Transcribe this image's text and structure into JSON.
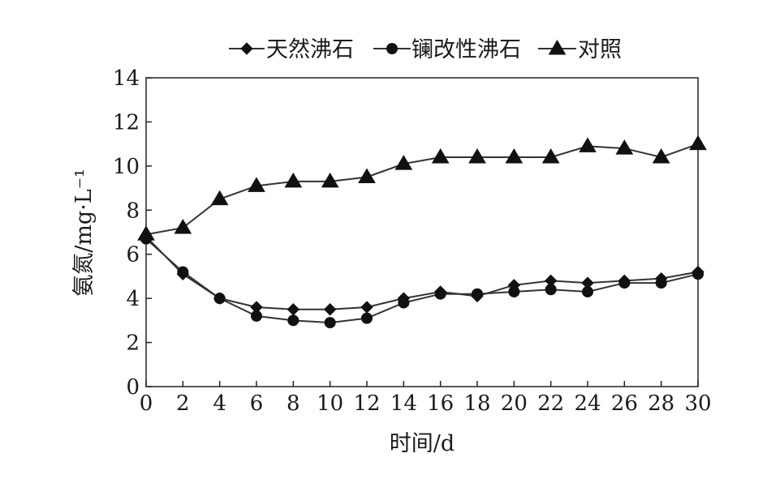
{
  "chart_data": {
    "type": "line",
    "xlabel": "时间/d",
    "ylabel": "氨氮/mg·L⁻¹",
    "xlim": [
      0,
      30
    ],
    "ylim": [
      0,
      14
    ],
    "xticks": [
      0,
      2,
      4,
      6,
      8,
      10,
      12,
      14,
      16,
      18,
      20,
      22,
      24,
      26,
      28,
      30
    ],
    "yticks": [
      0,
      2,
      4,
      6,
      8,
      10,
      12,
      14
    ],
    "x": [
      0,
      2,
      4,
      6,
      8,
      10,
      12,
      14,
      16,
      18,
      20,
      22,
      24,
      26,
      28,
      30
    ],
    "legend_position": "top",
    "grid": false,
    "series": [
      {
        "name": "天然沸石",
        "marker": "diamond",
        "values": [
          6.8,
          5.1,
          4.0,
          3.6,
          3.5,
          3.5,
          3.6,
          4.0,
          4.3,
          4.1,
          4.6,
          4.8,
          4.7,
          4.8,
          4.9,
          5.2
        ]
      },
      {
        "name": "镧改性沸石",
        "marker": "circle",
        "values": [
          6.7,
          5.2,
          4.0,
          3.2,
          3.0,
          2.9,
          3.1,
          3.8,
          4.2,
          4.2,
          4.3,
          4.4,
          4.3,
          4.7,
          4.7,
          5.1
        ]
      },
      {
        "name": "对照",
        "marker": "triangle",
        "values": [
          6.9,
          7.2,
          8.5,
          9.1,
          9.3,
          9.3,
          9.5,
          10.1,
          10.4,
          10.4,
          10.4,
          10.4,
          10.9,
          10.8,
          10.4,
          11.0
        ]
      }
    ]
  }
}
